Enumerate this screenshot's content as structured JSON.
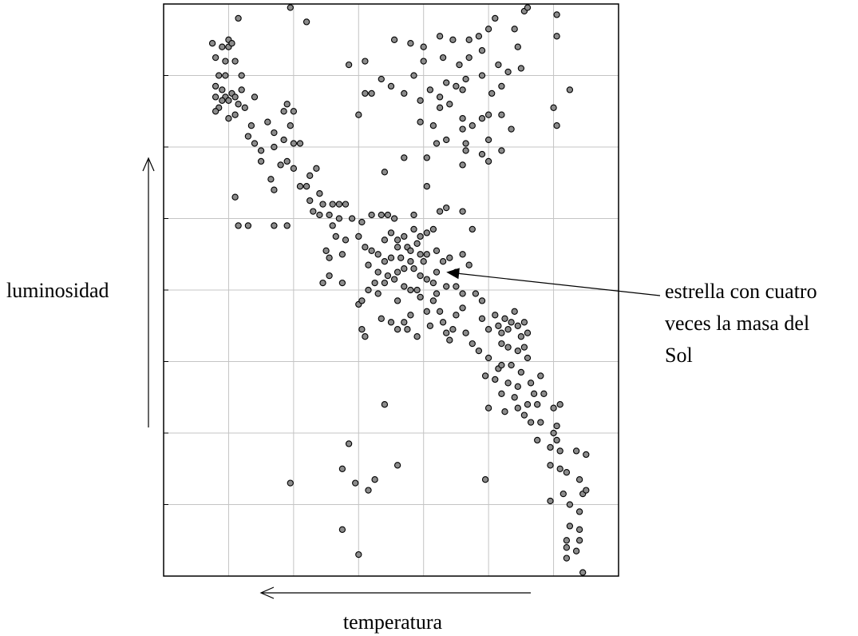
{
  "chart_data": {
    "type": "scatter",
    "title": "",
    "xlabel": "temperatura",
    "ylabel": "luminosidad",
    "x_direction": "right-to-left (temperature increases to the left)",
    "xlim": [
      0,
      7
    ],
    "ylim": [
      -8,
      0
    ],
    "grid": true,
    "grid_x": [
      1,
      2,
      3,
      4,
      5,
      6
    ],
    "grid_y": [
      -1,
      -2,
      -3,
      -4,
      -5,
      -6,
      -7
    ],
    "annotation": {
      "text_lines": [
        "estrella con cuatro",
        "veces la masa del",
        "Sol"
      ],
      "point": [
        4.35,
        -3.75
      ]
    },
    "points": [
      [
        1.15,
        -0.2
      ],
      [
        1.7,
        0.2
      ],
      [
        1.95,
        -0.05
      ],
      [
        2.2,
        -0.25
      ],
      [
        0.75,
        -0.55
      ],
      [
        0.8,
        -0.75
      ],
      [
        1.0,
        -0.5
      ],
      [
        1.0,
        -0.6
      ],
      [
        1.05,
        -0.55
      ],
      [
        1.1,
        -0.8
      ],
      [
        0.9,
        -0.6
      ],
      [
        0.95,
        -0.8
      ],
      [
        0.85,
        -1.0
      ],
      [
        0.8,
        -1.15
      ],
      [
        0.9,
        -1.2
      ],
      [
        0.95,
        -1.3
      ],
      [
        1.05,
        -1.25
      ],
      [
        0.8,
        -1.3
      ],
      [
        0.85,
        -1.45
      ],
      [
        1.0,
        -1.35
      ],
      [
        1.1,
        -1.3
      ],
      [
        1.2,
        -1.2
      ],
      [
        1.15,
        -1.4
      ],
      [
        1.25,
        -1.45
      ],
      [
        1.0,
        -1.6
      ],
      [
        1.1,
        -1.55
      ],
      [
        1.4,
        -1.3
      ],
      [
        1.35,
        -1.7
      ],
      [
        0.8,
        -1.5
      ],
      [
        0.9,
        -1.35
      ],
      [
        0.95,
        -1.0
      ],
      [
        1.2,
        -1.0
      ],
      [
        1.6,
        -1.65
      ],
      [
        1.85,
        -1.5
      ],
      [
        1.9,
        -1.4
      ],
      [
        2.0,
        -1.5
      ],
      [
        1.7,
        -1.8
      ],
      [
        1.85,
        -1.9
      ],
      [
        1.95,
        -1.7
      ],
      [
        2.0,
        -1.95
      ],
      [
        2.1,
        -1.95
      ],
      [
        1.3,
        -1.85
      ],
      [
        1.4,
        -1.95
      ],
      [
        1.5,
        -2.05
      ],
      [
        1.5,
        -2.2
      ],
      [
        1.7,
        -2.0
      ],
      [
        1.8,
        -2.25
      ],
      [
        1.9,
        -2.2
      ],
      [
        2.0,
        -2.3
      ],
      [
        2.25,
        -2.4
      ],
      [
        2.35,
        -2.3
      ],
      [
        1.65,
        -2.45
      ],
      [
        1.7,
        -2.6
      ],
      [
        2.1,
        -2.55
      ],
      [
        2.2,
        -2.55
      ],
      [
        2.25,
        -2.75
      ],
      [
        2.4,
        -2.65
      ],
      [
        2.45,
        -2.8
      ],
      [
        2.6,
        -2.8
      ],
      [
        2.7,
        -2.8
      ],
      [
        2.8,
        -2.8
      ],
      [
        2.3,
        -2.9
      ],
      [
        2.4,
        -2.95
      ],
      [
        2.55,
        -2.95
      ],
      [
        1.1,
        -2.7
      ],
      [
        1.15,
        -3.1
      ],
      [
        1.3,
        -3.1
      ],
      [
        1.7,
        -3.1
      ],
      [
        1.9,
        -3.1
      ],
      [
        2.6,
        -3.1
      ],
      [
        2.7,
        -3.0
      ],
      [
        2.9,
        -3.0
      ],
      [
        3.05,
        -3.05
      ],
      [
        3.2,
        -2.95
      ],
      [
        3.35,
        -2.95
      ],
      [
        3.45,
        -2.95
      ],
      [
        3.55,
        -3.0
      ],
      [
        3.85,
        -2.95
      ],
      [
        3.4,
        -3.3
      ],
      [
        3.5,
        -3.2
      ],
      [
        3.6,
        -3.3
      ],
      [
        3.6,
        -3.4
      ],
      [
        3.7,
        -3.25
      ],
      [
        3.75,
        -3.4
      ],
      [
        2.65,
        -3.25
      ],
      [
        2.8,
        -3.3
      ],
      [
        3.0,
        -3.25
      ],
      [
        3.1,
        -3.4
      ],
      [
        3.2,
        -3.45
      ],
      [
        3.3,
        -3.5
      ],
      [
        3.4,
        -3.6
      ],
      [
        3.5,
        -3.55
      ],
      [
        3.65,
        -3.55
      ],
      [
        3.8,
        -3.45
      ],
      [
        3.8,
        -3.6
      ],
      [
        3.95,
        -3.5
      ],
      [
        4.0,
        -3.6
      ],
      [
        2.75,
        -3.5
      ],
      [
        2.55,
        -3.55
      ],
      [
        2.5,
        -3.45
      ],
      [
        3.15,
        -3.65
      ],
      [
        3.3,
        -3.75
      ],
      [
        3.45,
        -3.8
      ],
      [
        3.6,
        -3.75
      ],
      [
        3.7,
        -3.7
      ],
      [
        3.85,
        -3.7
      ],
      [
        3.95,
        -3.8
      ],
      [
        4.05,
        -3.85
      ],
      [
        4.15,
        -3.9
      ],
      [
        4.2,
        -3.75
      ],
      [
        4.05,
        -3.5
      ],
      [
        3.4,
        -3.9
      ],
      [
        3.55,
        -3.85
      ],
      [
        3.7,
        -3.95
      ],
      [
        2.55,
        -3.8
      ],
      [
        2.45,
        -3.9
      ],
      [
        2.75,
        -3.9
      ],
      [
        3.25,
        -3.9
      ],
      [
        3.3,
        -4.05
      ],
      [
        3.15,
        -4.0
      ],
      [
        3.0,
        -4.2
      ],
      [
        3.05,
        -4.15
      ],
      [
        3.35,
        -4.4
      ],
      [
        3.6,
        -4.15
      ],
      [
        3.8,
        -4.35
      ],
      [
        3.75,
        -4.55
      ],
      [
        3.9,
        -4.65
      ],
      [
        3.95,
        -4.1
      ],
      [
        4.15,
        -4.15
      ],
      [
        4.05,
        -4.3
      ],
      [
        4.25,
        -4.3
      ],
      [
        3.9,
        -4.0
      ],
      [
        3.8,
        -4.0
      ],
      [
        4.1,
        -4.5
      ],
      [
        4.3,
        -4.45
      ],
      [
        4.45,
        -4.55
      ],
      [
        4.5,
        -4.35
      ],
      [
        4.4,
        -4.7
      ],
      [
        4.65,
        -4.6
      ],
      [
        4.35,
        -4.6
      ],
      [
        4.6,
        -4.25
      ],
      [
        4.2,
        -4.05
      ],
      [
        4.6,
        -4.05
      ],
      [
        4.8,
        -4.05
      ],
      [
        4.9,
        -4.15
      ],
      [
        3.05,
        -4.55
      ],
      [
        3.1,
        -4.65
      ],
      [
        3.5,
        -4.45
      ],
      [
        3.6,
        -4.55
      ],
      [
        3.7,
        -4.45
      ],
      [
        4.3,
        -3.6
      ],
      [
        4.4,
        -3.55
      ],
      [
        4.6,
        -3.5
      ],
      [
        4.7,
        -3.65
      ],
      [
        4.5,
        -3.75
      ],
      [
        4.35,
        -3.95
      ],
      [
        4.5,
        -3.95
      ],
      [
        3.85,
        -3.15
      ],
      [
        3.9,
        -3.35
      ],
      [
        3.95,
        -3.25
      ],
      [
        4.05,
        -3.2
      ],
      [
        4.15,
        -3.15
      ],
      [
        4.25,
        -2.9
      ],
      [
        4.6,
        -2.9
      ],
      [
        4.35,
        -2.85
      ],
      [
        4.75,
        -3.15
      ],
      [
        4.2,
        -3.45
      ],
      [
        4.05,
        -2.55
      ],
      [
        4.9,
        -4.4
      ],
      [
        5.0,
        -4.55
      ],
      [
        5.1,
        -4.35
      ],
      [
        5.15,
        -4.5
      ],
      [
        5.2,
        -4.6
      ],
      [
        5.25,
        -4.4
      ],
      [
        5.3,
        -4.55
      ],
      [
        5.35,
        -4.45
      ],
      [
        5.4,
        -4.3
      ],
      [
        5.45,
        -4.5
      ],
      [
        5.5,
        -4.65
      ],
      [
        5.55,
        -4.45
      ],
      [
        5.6,
        -4.6
      ],
      [
        5.2,
        -4.75
      ],
      [
        5.3,
        -4.8
      ],
      [
        5.45,
        -4.85
      ],
      [
        5.55,
        -4.8
      ],
      [
        5.6,
        -4.95
      ],
      [
        4.75,
        -4.75
      ],
      [
        4.85,
        -4.85
      ],
      [
        5.0,
        -4.95
      ],
      [
        5.15,
        -5.1
      ],
      [
        5.35,
        -5.05
      ],
      [
        5.5,
        -5.15
      ],
      [
        4.95,
        -5.2
      ],
      [
        5.1,
        -5.25
      ],
      [
        5.3,
        -5.3
      ],
      [
        5.45,
        -5.35
      ],
      [
        5.65,
        -5.3
      ],
      [
        5.8,
        -5.2
      ],
      [
        5.7,
        -5.45
      ],
      [
        5.85,
        -5.45
      ],
      [
        5.2,
        -5.45
      ],
      [
        5.4,
        -5.5
      ],
      [
        5.6,
        -5.6
      ],
      [
        5.0,
        -5.65
      ],
      [
        5.25,
        -5.7
      ],
      [
        5.45,
        -5.65
      ],
      [
        5.75,
        -5.6
      ],
      [
        5.55,
        -5.75
      ],
      [
        5.65,
        -5.85
      ],
      [
        5.8,
        -5.85
      ],
      [
        6.0,
        -5.65
      ],
      [
        6.1,
        -5.6
      ],
      [
        6.05,
        -5.9
      ],
      [
        6.0,
        -6.0
      ],
      [
        6.05,
        -6.1
      ],
      [
        5.95,
        -6.2
      ],
      [
        6.1,
        -6.25
      ],
      [
        5.95,
        -6.45
      ],
      [
        6.1,
        -6.5
      ],
      [
        6.35,
        -6.25
      ],
      [
        6.5,
        -6.3
      ],
      [
        6.2,
        -6.55
      ],
      [
        6.4,
        -6.65
      ],
      [
        6.15,
        -6.85
      ],
      [
        6.45,
        -6.85
      ],
      [
        6.5,
        -6.8
      ],
      [
        6.25,
        -7.0
      ],
      [
        6.4,
        -7.1
      ],
      [
        6.25,
        -7.3
      ],
      [
        6.4,
        -7.35
      ],
      [
        6.2,
        -7.5
      ],
      [
        6.4,
        -7.5
      ],
      [
        6.2,
        -7.6
      ],
      [
        6.35,
        -7.65
      ],
      [
        6.2,
        -7.75
      ],
      [
        6.45,
        -7.95
      ],
      [
        5.95,
        -6.95
      ],
      [
        5.75,
        -6.1
      ],
      [
        5.2,
        -5.05
      ],
      [
        2.85,
        -0.85
      ],
      [
        3.2,
        -1.25
      ],
      [
        3.35,
        -1.05
      ],
      [
        3.5,
        -1.15
      ],
      [
        3.7,
        -1.25
      ],
      [
        3.85,
        -1.0
      ],
      [
        3.95,
        -1.35
      ],
      [
        4.1,
        -1.2
      ],
      [
        4.25,
        -1.3
      ],
      [
        4.35,
        -1.1
      ],
      [
        4.5,
        -1.15
      ],
      [
        4.6,
        -1.2
      ],
      [
        4.9,
        -1.0
      ],
      [
        5.05,
        -1.25
      ],
      [
        5.2,
        -1.15
      ],
      [
        5.3,
        -0.95
      ],
      [
        5.5,
        -0.9
      ],
      [
        4.7,
        -0.75
      ],
      [
        4.9,
        -0.65
      ],
      [
        5.15,
        -0.85
      ],
      [
        5.45,
        -0.6
      ],
      [
        4.0,
        -0.6
      ],
      [
        4.25,
        -0.45
      ],
      [
        4.45,
        -0.5
      ],
      [
        4.7,
        -0.5
      ],
      [
        4.85,
        -0.45
      ],
      [
        5.0,
        -0.35
      ],
      [
        5.1,
        -0.2
      ],
      [
        5.4,
        -0.35
      ],
      [
        5.55,
        -0.1
      ],
      [
        5.6,
        -0.05
      ],
      [
        6.05,
        -0.15
      ],
      [
        6.05,
        -0.45
      ],
      [
        6.25,
        -1.2
      ],
      [
        6.0,
        -1.45
      ],
      [
        6.05,
        -1.7
      ],
      [
        3.1,
        -0.8
      ],
      [
        3.55,
        -0.5
      ],
      [
        3.8,
        -0.55
      ],
      [
        4.0,
        -0.8
      ],
      [
        4.3,
        -0.75
      ],
      [
        4.55,
        -0.85
      ],
      [
        4.65,
        -1.05
      ],
      [
        3.95,
        -1.65
      ],
      [
        4.15,
        -1.7
      ],
      [
        4.2,
        -1.95
      ],
      [
        4.35,
        -1.9
      ],
      [
        4.6,
        -1.75
      ],
      [
        4.65,
        -1.95
      ],
      [
        4.65,
        -2.05
      ],
      [
        4.75,
        -1.7
      ],
      [
        5.0,
        -1.55
      ],
      [
        5.2,
        -1.55
      ],
      [
        5.35,
        -1.75
      ],
      [
        5.0,
        -1.9
      ],
      [
        5.2,
        -2.05
      ],
      [
        5.0,
        -2.2
      ],
      [
        4.25,
        -1.45
      ],
      [
        4.4,
        -1.4
      ],
      [
        4.6,
        -1.6
      ],
      [
        4.9,
        -1.6
      ],
      [
        4.05,
        -2.15
      ],
      [
        3.7,
        -2.15
      ],
      [
        3.4,
        -2.35
      ],
      [
        3.1,
        -1.25
      ],
      [
        3.0,
        -1.55
      ],
      [
        4.6,
        -2.25
      ],
      [
        4.9,
        -2.1
      ],
      [
        2.85,
        -6.15
      ],
      [
        2.75,
        -6.5
      ],
      [
        2.95,
        -6.7
      ],
      [
        3.15,
        -6.8
      ],
      [
        3.4,
        -5.6
      ],
      [
        3.25,
        -6.65
      ],
      [
        3.6,
        -6.45
      ],
      [
        2.75,
        -7.35
      ],
      [
        3.0,
        -7.7
      ],
      [
        1.95,
        -6.7
      ],
      [
        4.95,
        -6.65
      ]
    ]
  }
}
